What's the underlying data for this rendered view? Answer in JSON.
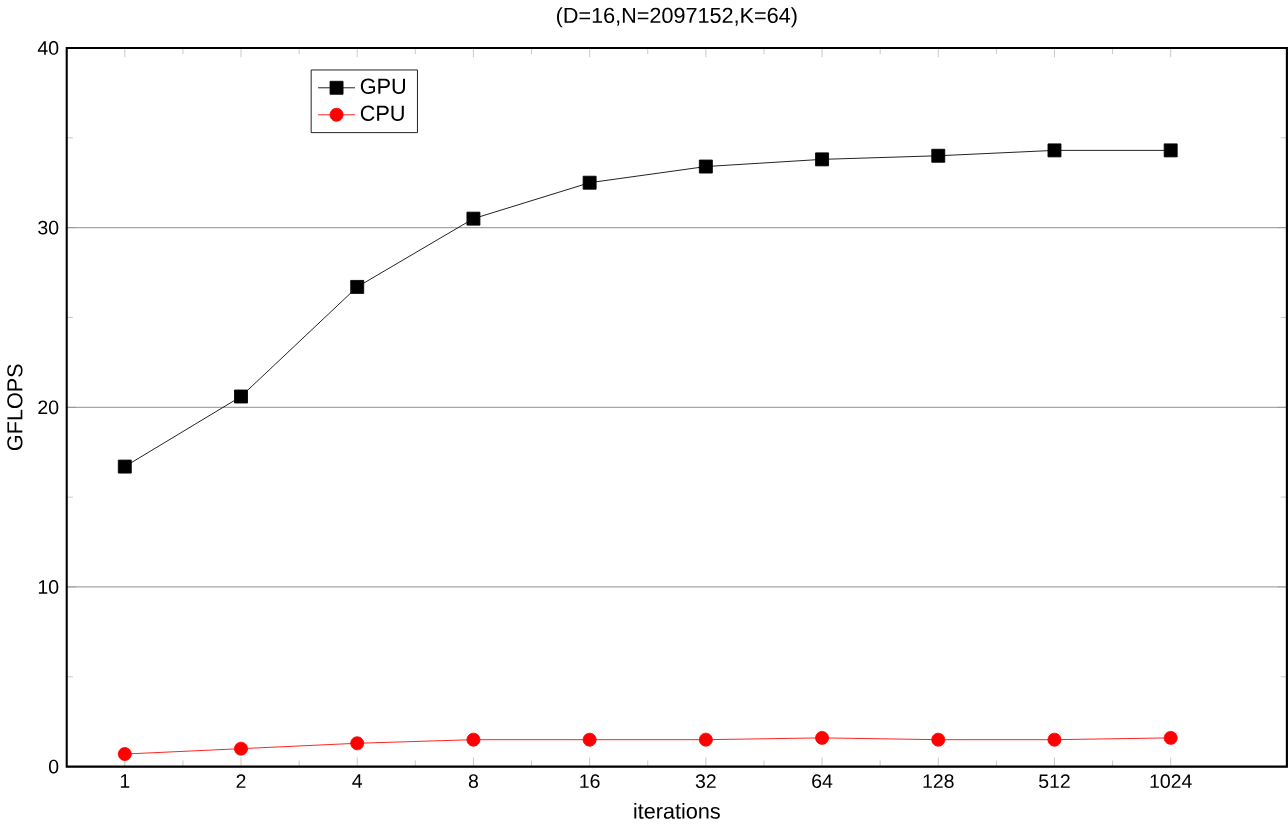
{
  "chart_data": {
    "type": "line",
    "title": "(D=16,N=2097152,K=64)",
    "xlabel": "iterations",
    "ylabel": "GFLOPS",
    "categories": [
      "1",
      "2",
      "4",
      "8",
      "16",
      "32",
      "64",
      "128",
      "512",
      "1024"
    ],
    "series": [
      {
        "name": "GPU",
        "color": "#000000",
        "marker": "square",
        "values": [
          16.7,
          20.6,
          26.7,
          30.5,
          32.5,
          33.4,
          33.8,
          34.0,
          34.3,
          34.3
        ]
      },
      {
        "name": "CPU",
        "color": "#ff0000",
        "marker": "circle",
        "values": [
          0.7,
          1.0,
          1.3,
          1.5,
          1.5,
          1.5,
          1.6,
          1.5,
          1.5,
          1.6
        ]
      }
    ],
    "ylim": [
      0,
      40
    ],
    "yticks": [
      0,
      10,
      20,
      30,
      40
    ],
    "grid": "y",
    "legend": "top left"
  }
}
